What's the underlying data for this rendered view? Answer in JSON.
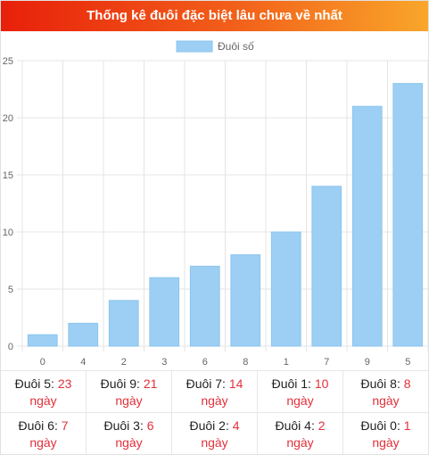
{
  "header": {
    "title": "Thống kê đuôi đặc biệt lâu chưa về nhất"
  },
  "colors": {
    "bar": "#9ccff3",
    "bar_border": "#8cc5ef",
    "accent": "#e2303a"
  },
  "chart_data": {
    "type": "bar",
    "categories": [
      "0",
      "4",
      "2",
      "3",
      "6",
      "8",
      "1",
      "7",
      "9",
      "5"
    ],
    "series": [
      {
        "name": "Đuôi số",
        "values": [
          1,
          2,
          4,
          6,
          7,
          8,
          10,
          14,
          21,
          23
        ]
      }
    ],
    "ylim": [
      0,
      25
    ],
    "yticks": [
      "0",
      "5",
      "10",
      "15",
      "20",
      "25"
    ],
    "grid": true,
    "legend": "top-center"
  },
  "stats": {
    "rows": [
      [
        {
          "label": "Đuôi 5: ",
          "value": "23",
          "unit": "ngày"
        },
        {
          "label": "Đuôi 9: ",
          "value": "21",
          "unit": "ngày"
        },
        {
          "label": "Đuôi 7: ",
          "value": "14",
          "unit": "ngày"
        },
        {
          "label": "Đuôi 1: ",
          "value": "10",
          "unit": "ngày"
        },
        {
          "label": "Đuôi 8: ",
          "value": "8",
          "unit": "ngày"
        }
      ],
      [
        {
          "label": "Đuôi 6: ",
          "value": "7",
          "unit": "ngày"
        },
        {
          "label": "Đuôi 3: ",
          "value": "6",
          "unit": "ngày"
        },
        {
          "label": "Đuôi 2: ",
          "value": "4",
          "unit": "ngày"
        },
        {
          "label": "Đuôi 4: ",
          "value": "2",
          "unit": "ngày"
        },
        {
          "label": "Đuôi 0: ",
          "value": "1",
          "unit": "ngày"
        }
      ]
    ]
  }
}
